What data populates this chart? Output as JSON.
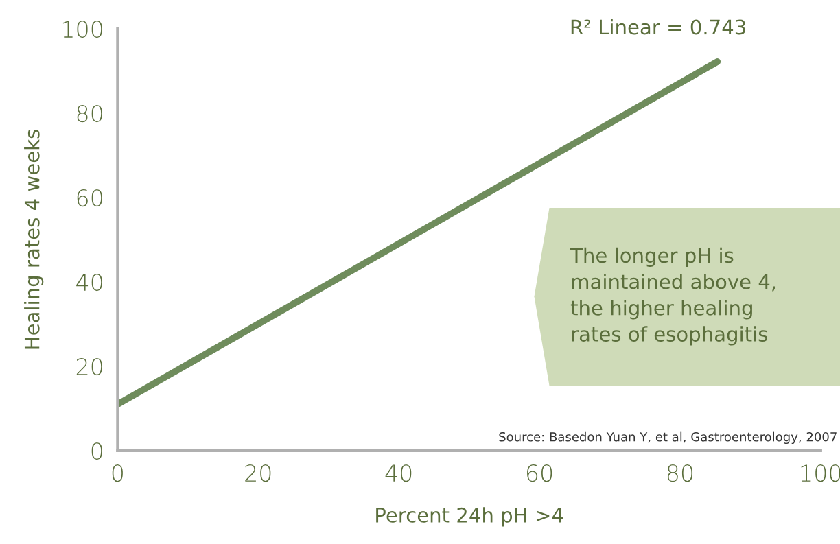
{
  "chart_data": {
    "type": "line",
    "xlabel": "Percent 24h pH >4",
    "ylabel": "Healing rates 4 weeks",
    "x": [
      0,
      85.3
    ],
    "series": [
      {
        "color": "#6f8c5c",
        "values": [
          11,
          92.2
        ]
      }
    ],
    "xlim": [
      0,
      100
    ],
    "ylim": [
      0,
      100
    ],
    "xticks": [
      0,
      20,
      40,
      60,
      80,
      100
    ],
    "yticks": [
      0,
      20,
      40,
      60,
      80,
      100
    ],
    "grid": false,
    "legend": false,
    "marker": "none",
    "line_style": "solid",
    "annotations": [
      "R² Linear = 0.743",
      "The longer pH is\nmaintained above 4,\nthe higher healing\nrates of esophagitis",
      "Source: Basedon Yuan Y, et al, Gastroenterology, 2007"
    ]
  }
}
